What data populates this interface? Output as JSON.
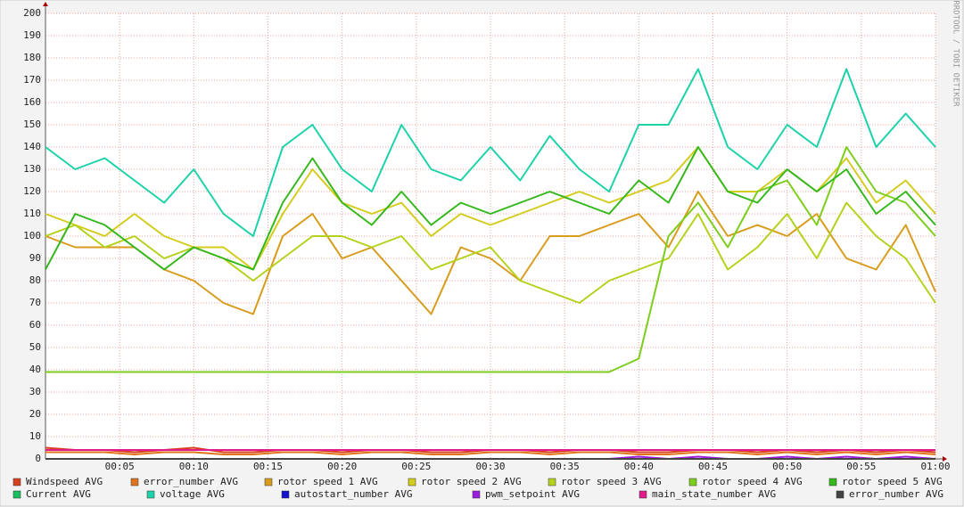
{
  "chart_data": {
    "type": "line",
    "side_label": "RRDTOOL / TOBI OETIKER",
    "x": [
      0,
      2,
      4,
      6,
      8,
      10,
      12,
      14,
      16,
      18,
      20,
      22,
      24,
      26,
      28,
      30,
      32,
      34,
      36,
      38,
      40,
      42,
      44,
      46,
      48,
      50,
      52,
      54,
      56,
      58,
      60
    ],
    "xlim": [
      0,
      60
    ],
    "xticks": [
      {
        "value": 5,
        "label": "00:05"
      },
      {
        "value": 10,
        "label": "00:10"
      },
      {
        "value": 15,
        "label": "00:15"
      },
      {
        "value": 20,
        "label": "00:20"
      },
      {
        "value": 25,
        "label": "00:25"
      },
      {
        "value": 30,
        "label": "00:30"
      },
      {
        "value": 35,
        "label": "00:35"
      },
      {
        "value": 40,
        "label": "00:40"
      },
      {
        "value": 45,
        "label": "00:45"
      },
      {
        "value": 50,
        "label": "00:50"
      },
      {
        "value": 55,
        "label": "00:55"
      },
      {
        "value": 60,
        "label": "01:00"
      }
    ],
    "ylim": [
      0,
      200
    ],
    "yticks": [
      0,
      10,
      20,
      30,
      40,
      50,
      60,
      70,
      80,
      90,
      100,
      110,
      120,
      130,
      140,
      150,
      160,
      170,
      180,
      190,
      200
    ],
    "grid": true,
    "series": [
      {
        "name": "Windspeed AVG",
        "color": "#d8401c",
        "values": [
          5,
          4,
          4,
          3,
          4,
          5,
          3,
          3,
          4,
          4,
          3,
          4,
          4,
          3,
          3,
          4,
          4,
          3,
          4,
          4,
          3,
          3,
          4,
          4,
          3,
          4,
          3,
          4,
          3,
          4,
          3
        ]
      },
      {
        "name": "error_number AVG",
        "color": "#e0741c",
        "values": [
          3,
          3,
          3,
          2,
          3,
          3,
          2,
          2,
          3,
          3,
          2,
          3,
          3,
          2,
          2,
          3,
          3,
          2,
          3,
          3,
          2,
          2,
          3,
          3,
          2,
          3,
          2,
          3,
          2,
          3,
          2
        ]
      },
      {
        "name": "rotor speed 1 AVG",
        "color": "#d89c1c",
        "values": [
          100,
          95,
          95,
          95,
          85,
          80,
          70,
          65,
          100,
          110,
          90,
          95,
          80,
          65,
          95,
          90,
          80,
          100,
          100,
          105,
          110,
          95,
          120,
          100,
          105,
          100,
          110,
          90,
          85,
          105,
          75
        ]
      },
      {
        "name": "rotor speed 2 AVG",
        "color": "#d4cc1c",
        "values": [
          110,
          105,
          100,
          110,
          100,
          95,
          95,
          85,
          110,
          130,
          115,
          110,
          115,
          100,
          110,
          105,
          110,
          115,
          120,
          115,
          120,
          125,
          140,
          120,
          120,
          130,
          120,
          135,
          115,
          125,
          110
        ]
      },
      {
        "name": "rotor speed 3 AVG",
        "color": "#b4d21c",
        "values": [
          100,
          105,
          95,
          100,
          90,
          95,
          90,
          80,
          90,
          100,
          100,
          95,
          100,
          85,
          90,
          95,
          80,
          75,
          70,
          80,
          85,
          90,
          110,
          85,
          95,
          110,
          90,
          115,
          100,
          90,
          70
        ]
      },
      {
        "name": "rotor speed 4 AVG",
        "color": "#7cce1c",
        "values": [
          39,
          39,
          39,
          39,
          39,
          39,
          39,
          39,
          39,
          39,
          39,
          39,
          39,
          39,
          39,
          39,
          39,
          39,
          39,
          39,
          45,
          100,
          115,
          95,
          120,
          125,
          105,
          140,
          120,
          115,
          100
        ]
      },
      {
        "name": "rotor speed 5 AVG",
        "color": "#34b81c",
        "values": [
          85,
          110,
          105,
          95,
          85,
          95,
          90,
          85,
          115,
          135,
          115,
          105,
          120,
          105,
          115,
          110,
          115,
          120,
          115,
          110,
          125,
          115,
          140,
          120,
          115,
          130,
          120,
          130,
          110,
          120,
          105
        ]
      },
      {
        "name": "Current AVG",
        "color": "#18c060",
        "values": [
          0,
          0,
          0,
          0,
          0,
          0,
          0,
          0,
          0,
          0,
          0,
          0,
          0,
          0,
          0,
          0,
          0,
          0,
          0,
          0,
          0,
          0,
          0,
          0,
          0,
          0,
          0,
          0,
          0,
          0,
          0
        ]
      },
      {
        "name": "voltage AVG",
        "color": "#1cd2a8",
        "values": [
          140,
          130,
          135,
          125,
          115,
          130,
          110,
          100,
          140,
          150,
          130,
          120,
          150,
          130,
          125,
          140,
          125,
          145,
          130,
          120,
          150,
          150,
          175,
          140,
          130,
          150,
          140,
          175,
          140,
          155,
          140
        ]
      },
      {
        "name": "autostart_number AVG",
        "color": "#1414cc",
        "values": [
          0,
          0,
          0,
          0,
          0,
          0,
          0,
          0,
          0,
          0,
          0,
          0,
          0,
          0,
          0,
          0,
          0,
          0,
          0,
          0,
          0,
          0,
          0,
          0,
          0,
          0,
          0,
          0,
          0,
          0,
          0
        ]
      },
      {
        "name": "pwm_setpoint AVG",
        "color": "#9c1cdc",
        "values": [
          0,
          0,
          0,
          0,
          0,
          0,
          0,
          0,
          0,
          0,
          0,
          0,
          0,
          0,
          0,
          0,
          0,
          0,
          0,
          0,
          1,
          0,
          1,
          0,
          0,
          1,
          0,
          1,
          0,
          1,
          0
        ]
      },
      {
        "name": "main_state_number AVG",
        "color": "#e01c8c",
        "values": [
          4,
          4,
          4,
          4,
          4,
          4,
          4,
          4,
          4,
          4,
          4,
          4,
          4,
          4,
          4,
          4,
          4,
          4,
          4,
          4,
          4,
          4,
          4,
          4,
          4,
          4,
          4,
          4,
          4,
          4,
          4
        ]
      },
      {
        "name": "error_number AVG",
        "color": "#444444",
        "values": [
          0,
          0,
          0,
          0,
          0,
          0,
          0,
          0,
          0,
          0,
          0,
          0,
          0,
          0,
          0,
          0,
          0,
          0,
          0,
          0,
          0,
          0,
          0,
          0,
          0,
          0,
          0,
          0,
          0,
          0,
          0
        ]
      }
    ]
  }
}
